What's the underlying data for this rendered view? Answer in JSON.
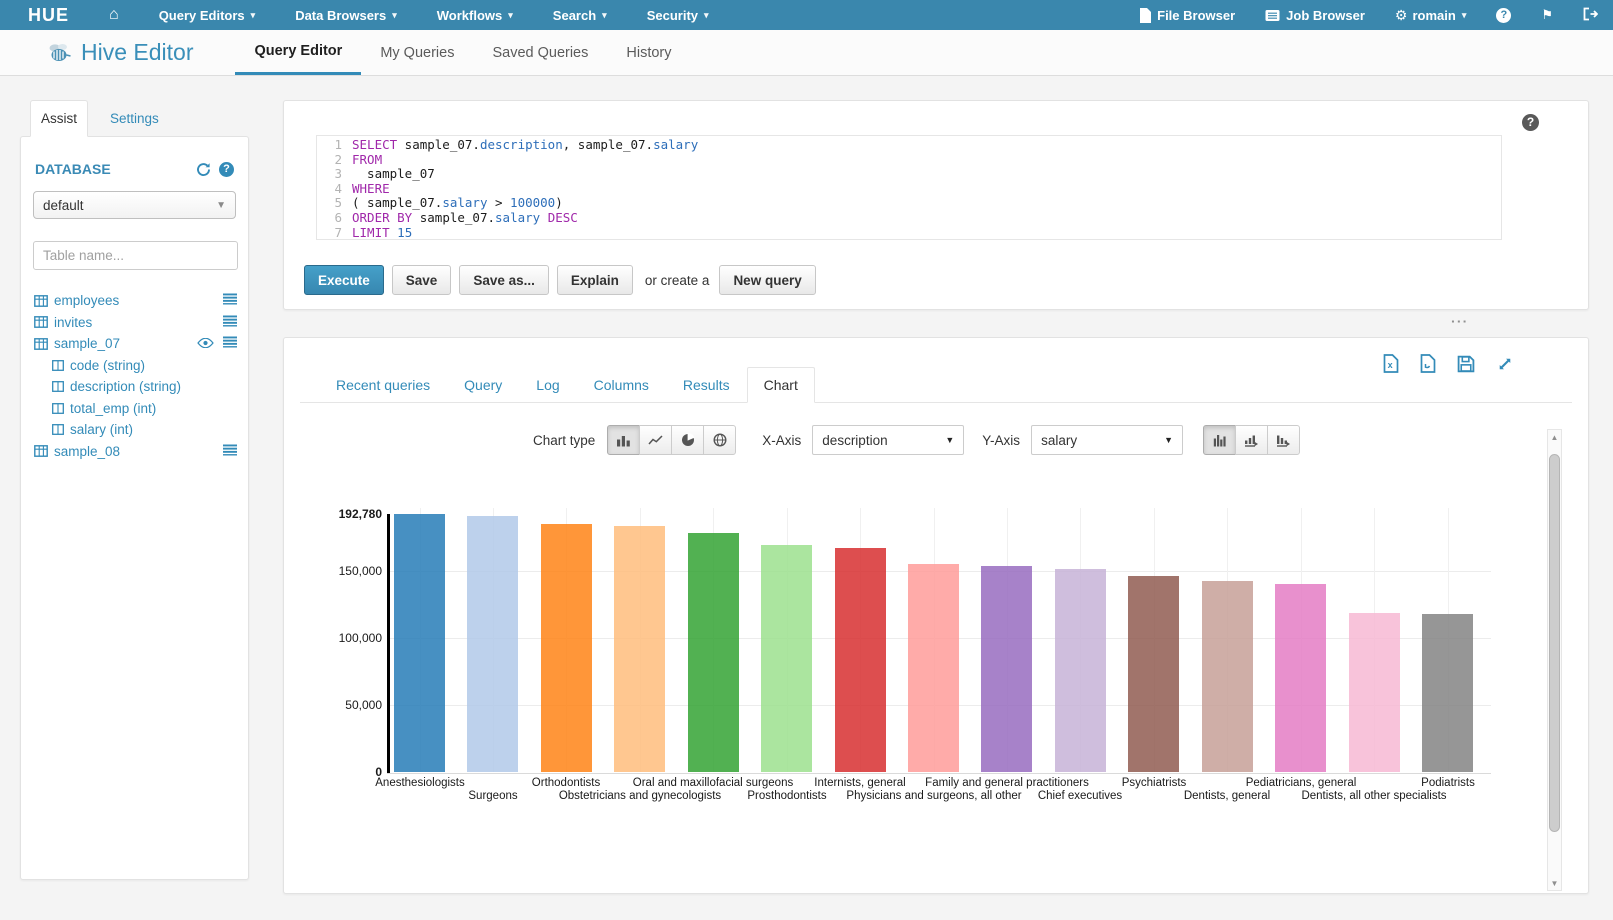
{
  "navbar": {
    "logo_text": "HUE",
    "menus": [
      {
        "label": "Query Editors"
      },
      {
        "label": "Data Browsers"
      },
      {
        "label": "Workflows"
      },
      {
        "label": "Search"
      },
      {
        "label": "Security"
      }
    ],
    "right_menus": {
      "file_browser": "File Browser",
      "job_browser": "Job Browser",
      "user": "romain"
    },
    "icons": [
      "home-icon",
      "file-icon",
      "list-icon",
      "gears-icon",
      "question-circle-icon",
      "flag-icon",
      "sign-out-icon"
    ]
  },
  "header": {
    "app_title": "Hive Editor",
    "tabs": [
      {
        "label": "Query Editor",
        "active": true
      },
      {
        "label": "My Queries",
        "active": false
      },
      {
        "label": "Saved Queries",
        "active": false
      },
      {
        "label": "History",
        "active": false
      }
    ]
  },
  "sidebar": {
    "tabs": [
      {
        "label": "Assist",
        "active": true
      },
      {
        "label": "Settings",
        "active": false
      }
    ],
    "database_label": "DATABASE",
    "database_value": "default",
    "table_filter_placeholder": "Table name...",
    "tables": [
      {
        "name": "employees",
        "type": "table",
        "eye": false,
        "menu": true
      },
      {
        "name": "invites",
        "type": "table",
        "eye": false,
        "menu": true
      },
      {
        "name": "sample_07",
        "type": "table",
        "eye": true,
        "menu": true
      },
      {
        "name": "code (string)",
        "type": "column",
        "eye": false,
        "menu": false
      },
      {
        "name": "description (string)",
        "type": "column",
        "eye": false,
        "menu": false
      },
      {
        "name": "total_emp (int)",
        "type": "column",
        "eye": false,
        "menu": false
      },
      {
        "name": "salary (int)",
        "type": "column",
        "eye": false,
        "menu": false
      },
      {
        "name": "sample_08",
        "type": "table",
        "eye": false,
        "menu": true
      }
    ]
  },
  "editor": {
    "sql_lines": [
      [
        [
          "k",
          "SELECT"
        ],
        [
          "p",
          " sample_07."
        ],
        [
          "a",
          "description"
        ],
        [
          "p",
          ", sample_07."
        ],
        [
          "a",
          "salary"
        ]
      ],
      [
        [
          "k",
          "FROM"
        ]
      ],
      [
        [
          "p",
          "  sample_07"
        ]
      ],
      [
        [
          "k",
          "WHERE"
        ]
      ],
      [
        [
          "p",
          "( sample_07."
        ],
        [
          "a",
          "salary"
        ],
        [
          "p",
          " > "
        ],
        [
          "n",
          "100000"
        ],
        [
          "p",
          ")"
        ]
      ],
      [
        [
          "k",
          "ORDER BY"
        ],
        [
          "p",
          " sample_07."
        ],
        [
          "a",
          "salary"
        ],
        [
          "p",
          " "
        ],
        [
          "k",
          "DESC"
        ]
      ],
      [
        [
          "k",
          "LIMIT"
        ],
        [
          "p",
          " "
        ],
        [
          "n",
          "15"
        ]
      ]
    ],
    "buttons": {
      "execute": "Execute",
      "save": "Save",
      "save_as": "Save as...",
      "explain": "Explain",
      "or_text": "or create a",
      "new_query": "New query"
    }
  },
  "results": {
    "tabs": [
      {
        "label": "Recent queries",
        "active": false
      },
      {
        "label": "Query",
        "active": false
      },
      {
        "label": "Log",
        "active": false
      },
      {
        "label": "Columns",
        "active": false
      },
      {
        "label": "Results",
        "active": false
      },
      {
        "label": "Chart",
        "active": true
      }
    ],
    "controls": {
      "chart_type_label": "Chart type",
      "chart_type_icons": [
        "bar-chart-icon",
        "line-chart-icon",
        "pie-chart-icon",
        "map-chart-icon"
      ],
      "x_axis_label": "X-Axis",
      "x_axis_value": "description",
      "y_axis_label": "Y-Axis",
      "y_axis_value": "salary",
      "sort_icons": [
        "grouped-bars-icon",
        "sort-asc-bars-icon",
        "sort-desc-bars-icon"
      ]
    },
    "export_icons": [
      "excel-file-icon",
      "file-download-icon",
      "save-icon",
      "expand-icon"
    ]
  },
  "chart_data": {
    "type": "bar",
    "title": "",
    "xlabel": "description",
    "ylabel": "salary",
    "ylim": [
      0,
      192780
    ],
    "grid": true,
    "legend": "none",
    "yticks": [
      {
        "v": 192780,
        "label": "192,780",
        "bold": true
      },
      {
        "v": 150000,
        "label": "150,000",
        "bold": false
      },
      {
        "v": 100000,
        "label": "100,000",
        "bold": false
      },
      {
        "v": 50000,
        "label": "50,000",
        "bold": false
      },
      {
        "v": 0,
        "label": "0",
        "bold": true
      }
    ],
    "categories": [
      "Anesthesiologists",
      "Surgeons",
      "Orthodontists",
      "Obstetricians and gynecologists",
      "Oral and maxillofacial surgeons",
      "Prosthodontists",
      "Internists, general",
      "Physicians and surgeons, all other",
      "Family and general practitioners",
      "Chief executives",
      "Psychiatrists",
      "Dentists, general",
      "Pediatricians, general",
      "Dentists, all other specialists",
      "Podiatrists"
    ],
    "values": [
      192780,
      191410,
      185340,
      183600,
      178440,
      169810,
      167270,
      155150,
      153640,
      151370,
      146150,
      142870,
      140690,
      118590,
      118400
    ],
    "colors": [
      "#1f77b4",
      "#aec7e8",
      "#ff7f0e",
      "#ffbb78",
      "#2ca02c",
      "#98df8a",
      "#d62728",
      "#ff9896",
      "#9467bd",
      "#c5b0d5",
      "#8c564b",
      "#c49c94",
      "#e377c2",
      "#f7b6d2",
      "#7f7f7f"
    ]
  }
}
